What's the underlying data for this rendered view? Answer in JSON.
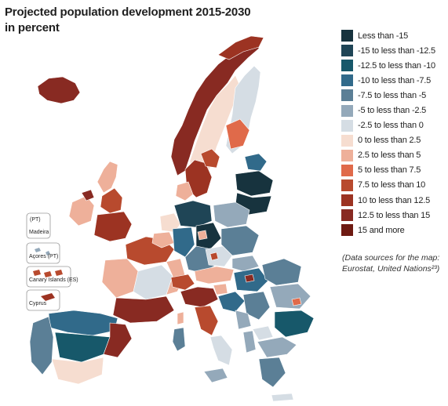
{
  "title": {
    "line1": "Projected population development 2015-2030",
    "line2": "in percent"
  },
  "legend": [
    {
      "label": "Less than -15",
      "color": "#17333e"
    },
    {
      "label": "-15 to less than -12.5",
      "color": "#1f4556"
    },
    {
      "label": "-12.5 to less than -10",
      "color": "#17586a"
    },
    {
      "label": "-10 to less than -7.5",
      "color": "#316a8a"
    },
    {
      "label": "-7.5 to less than -5",
      "color": "#5b7f96"
    },
    {
      "label": "-5 to less than -2.5",
      "color": "#94a9ba"
    },
    {
      "label": "-2.5 to less than 0",
      "color": "#d5dde4"
    },
    {
      "label": "0 to less than 2.5",
      "color": "#f6ddd0"
    },
    {
      "label": "2.5 to less than 5",
      "color": "#eeb09a"
    },
    {
      "label": "5 to less than 7.5",
      "color": "#e06a4a"
    },
    {
      "label": "7.5 to less than 10",
      "color": "#b84a2e"
    },
    {
      "label": "10 to less than 12.5",
      "color": "#9c3322"
    },
    {
      "label": "12.5 to less than 15",
      "color": "#882a22"
    },
    {
      "label": "15 and more",
      "color": "#6e1a12"
    }
  ],
  "source": {
    "line1": "(Data sources for the map:",
    "line2": "Eurostat, United Nations²³)"
  },
  "insets": {
    "madeira_pt": "(PT)",
    "madeira": "Madeira",
    "azores": "Açores (PT)",
    "canary": "Canary Islands (ES)",
    "cyprus": "Cyprus"
  }
}
